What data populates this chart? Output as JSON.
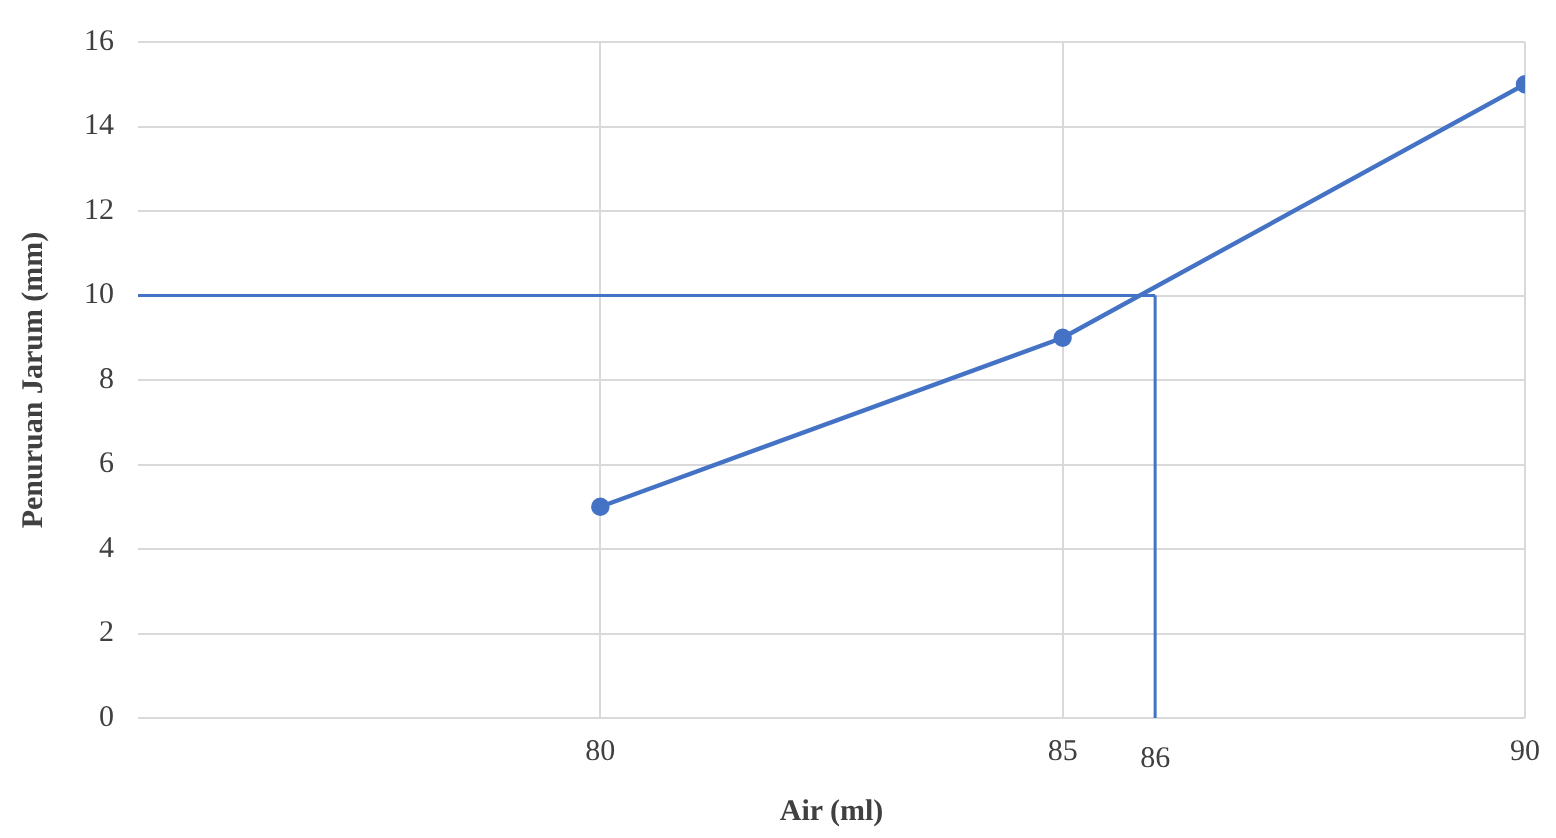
{
  "chart_data": {
    "type": "line",
    "xlabel": "Air (ml)",
    "ylabel": "Penuruan Jarum (mm)",
    "x": [
      80,
      85,
      90
    ],
    "series": [
      {
        "color": "#4472c4",
        "values": [
          5,
          9,
          15
        ]
      }
    ],
    "xlim": [
      75,
      90
    ],
    "xticks": [
      80,
      85,
      90
    ],
    "ylim": [
      0,
      16
    ],
    "yticks": [
      0,
      2,
      4,
      6,
      8,
      10,
      12,
      14,
      16
    ],
    "ref_lines": [
      {
        "axis": "y",
        "value": 10,
        "color": "#4472c4"
      },
      {
        "axis": "x",
        "value": 86,
        "label": "86",
        "color": "#4472c4"
      }
    ],
    "grid": true,
    "marker": "circle",
    "line_style": "solid",
    "legend": false
  }
}
